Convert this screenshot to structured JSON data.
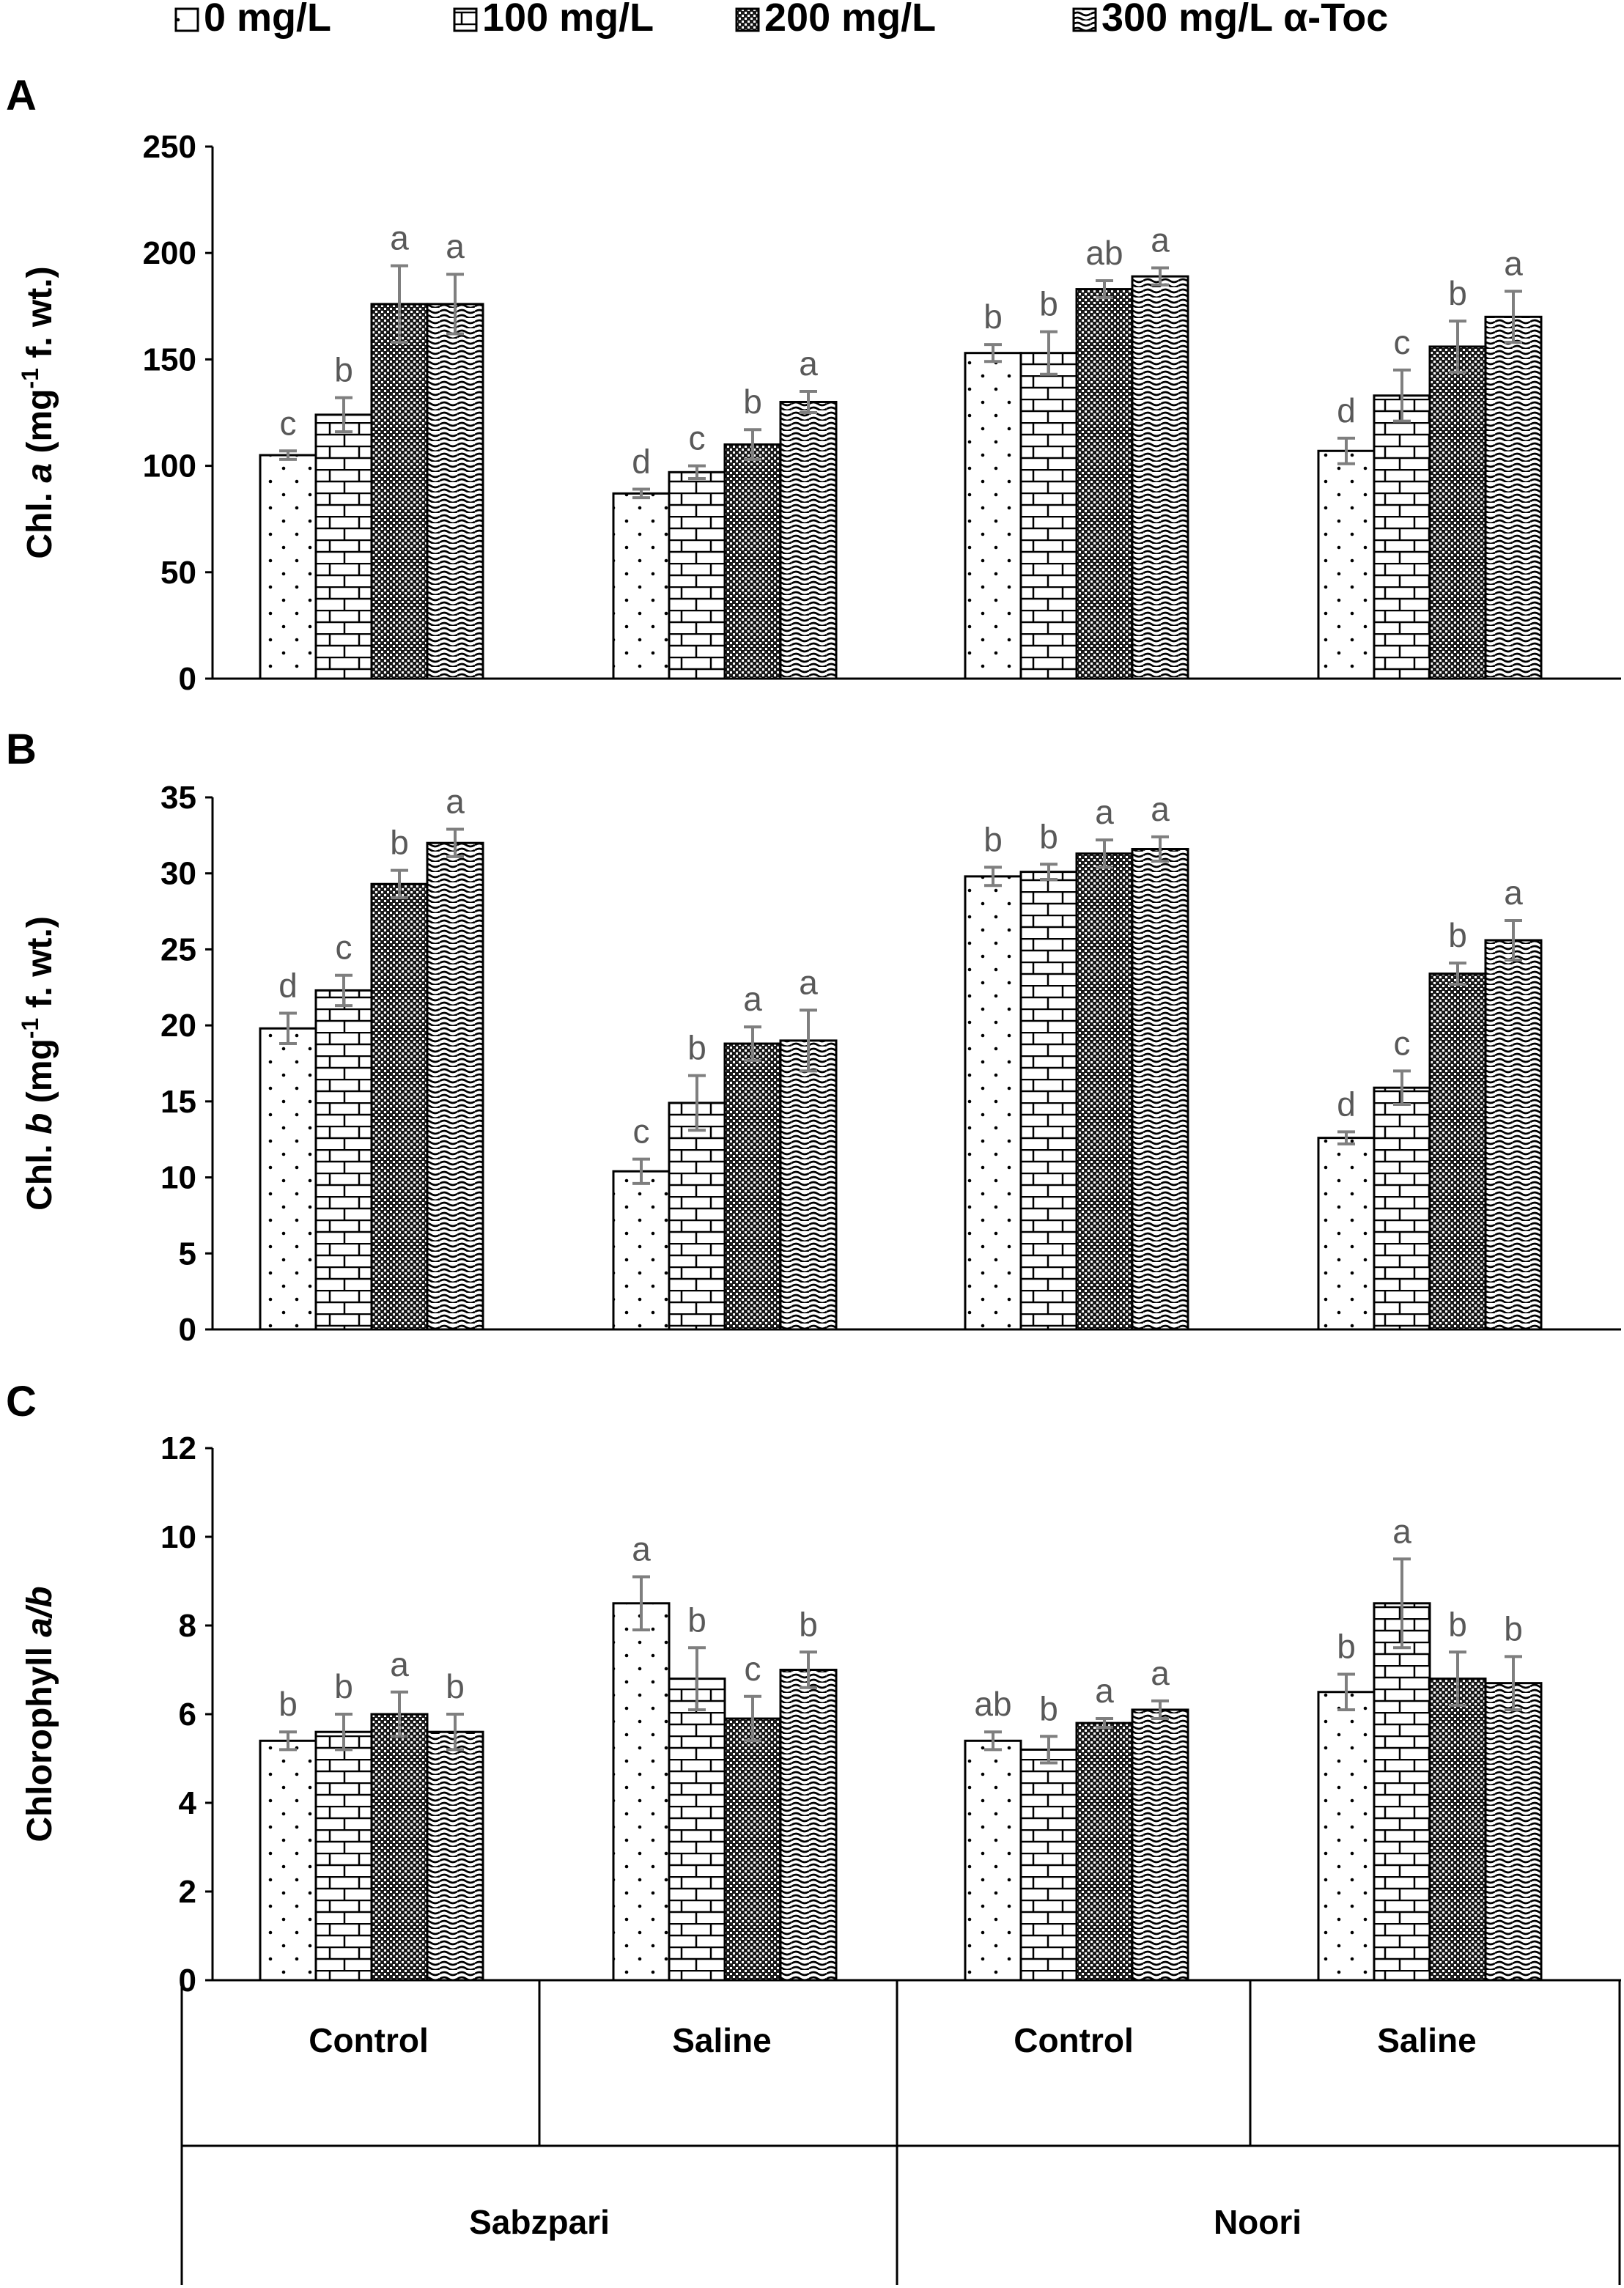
{
  "legend": {
    "items": [
      "0 mg/L",
      "100 mg/L",
      "200 mg/L",
      "300 mg/L α-Toc"
    ]
  },
  "x_axis": {
    "categories": [
      "Control",
      "Saline",
      "Control",
      "Saline"
    ],
    "groups": [
      "Sabzpari",
      "Noori"
    ]
  },
  "colors": {
    "bar_fill": "#ffffff",
    "outline": "#000000",
    "error_bar": "#7f7f7f",
    "letter": "#595959"
  },
  "chart_data": [
    {
      "panel": "A",
      "type": "bar",
      "ylabel": {
        "prefix": "Chl. ",
        "italic": "a",
        "mid": " (mg",
        "sup": "-1",
        "suffix": " f. wt.)"
      },
      "ylim": [
        0,
        250
      ],
      "ticks": [
        0,
        50,
        100,
        150,
        200,
        250
      ],
      "categories": [
        "Control",
        "Saline",
        "Control",
        "Saline"
      ],
      "series": [
        {
          "name": "0 mg/L",
          "values": [
            105,
            87,
            153,
            107
          ],
          "errors": [
            2,
            2,
            4,
            6
          ],
          "letters": [
            "c",
            "d",
            "b",
            "d"
          ]
        },
        {
          "name": "100 mg/L",
          "values": [
            124,
            97,
            153,
            133
          ],
          "errors": [
            8,
            3,
            10,
            12
          ],
          "letters": [
            "b",
            "c",
            "b",
            "c"
          ]
        },
        {
          "name": "200 mg/L",
          "values": [
            176,
            110,
            183,
            156
          ],
          "errors": [
            18,
            7,
            4,
            12
          ],
          "letters": [
            "a",
            "b",
            "ab",
            "b"
          ]
        },
        {
          "name": "300 mg/L α-Toc",
          "values": [
            176,
            130,
            189,
            170
          ],
          "errors": [
            14,
            5,
            4,
            12
          ],
          "letters": [
            "a",
            "a",
            "a",
            "a"
          ]
        }
      ]
    },
    {
      "panel": "B",
      "type": "bar",
      "ylabel": {
        "prefix": "Chl. ",
        "italic": "b",
        "mid": " (mg",
        "sup": "-1",
        "suffix": " f. wt.)"
      },
      "ylim": [
        0,
        35
      ],
      "ticks": [
        0,
        5,
        10,
        15,
        20,
        25,
        30,
        35
      ],
      "categories": [
        "Control",
        "Saline",
        "Control",
        "Saline"
      ],
      "series": [
        {
          "name": "0 mg/L",
          "values": [
            19.8,
            10.4,
            29.8,
            12.6
          ],
          "errors": [
            1.0,
            0.8,
            0.6,
            0.4
          ],
          "letters": [
            "d",
            "c",
            "b",
            "d"
          ]
        },
        {
          "name": "100 mg/L",
          "values": [
            22.3,
            14.9,
            30.1,
            15.9
          ],
          "errors": [
            1.0,
            1.8,
            0.5,
            1.1
          ],
          "letters": [
            "c",
            "b",
            "b",
            "c"
          ]
        },
        {
          "name": "200 mg/L",
          "values": [
            29.3,
            18.8,
            31.3,
            23.4
          ],
          "errors": [
            0.9,
            1.1,
            0.9,
            0.7
          ],
          "letters": [
            "b",
            "a",
            "a",
            "b"
          ]
        },
        {
          "name": "300 mg/L α-Toc",
          "values": [
            32.0,
            19.0,
            31.6,
            25.6
          ],
          "errors": [
            0.9,
            2.0,
            0.8,
            1.3
          ],
          "letters": [
            "a",
            "a",
            "a",
            "a"
          ]
        }
      ]
    },
    {
      "panel": "C",
      "type": "bar",
      "ylabel": {
        "prefix": "Chlorophyll ",
        "italic": "a/b",
        "mid": "",
        "sup": "",
        "suffix": ""
      },
      "ylim": [
        0,
        12
      ],
      "ticks": [
        0,
        2,
        4,
        6,
        8,
        10,
        12
      ],
      "categories": [
        "Control",
        "Saline",
        "Control",
        "Saline"
      ],
      "series": [
        {
          "name": "0 mg/L",
          "values": [
            5.4,
            8.5,
            5.4,
            6.5
          ],
          "errors": [
            0.2,
            0.6,
            0.2,
            0.4
          ],
          "letters": [
            "b",
            "a",
            "ab",
            "b"
          ]
        },
        {
          "name": "100 mg/L",
          "values": [
            5.6,
            6.8,
            5.2,
            8.5
          ],
          "errors": [
            0.4,
            0.7,
            0.3,
            1.0
          ],
          "letters": [
            "b",
            "b",
            "b",
            "a"
          ]
        },
        {
          "name": "200 mg/L",
          "values": [
            6.0,
            5.9,
            5.8,
            6.8
          ],
          "errors": [
            0.5,
            0.5,
            0.1,
            0.6
          ],
          "letters": [
            "a",
            "c",
            "a",
            "b"
          ]
        },
        {
          "name": "300 mg/L α-Toc",
          "values": [
            5.6,
            7.0,
            6.1,
            6.7
          ],
          "errors": [
            0.4,
            0.4,
            0.2,
            0.6
          ],
          "letters": [
            "b",
            "b",
            "a",
            "b"
          ]
        }
      ]
    }
  ]
}
